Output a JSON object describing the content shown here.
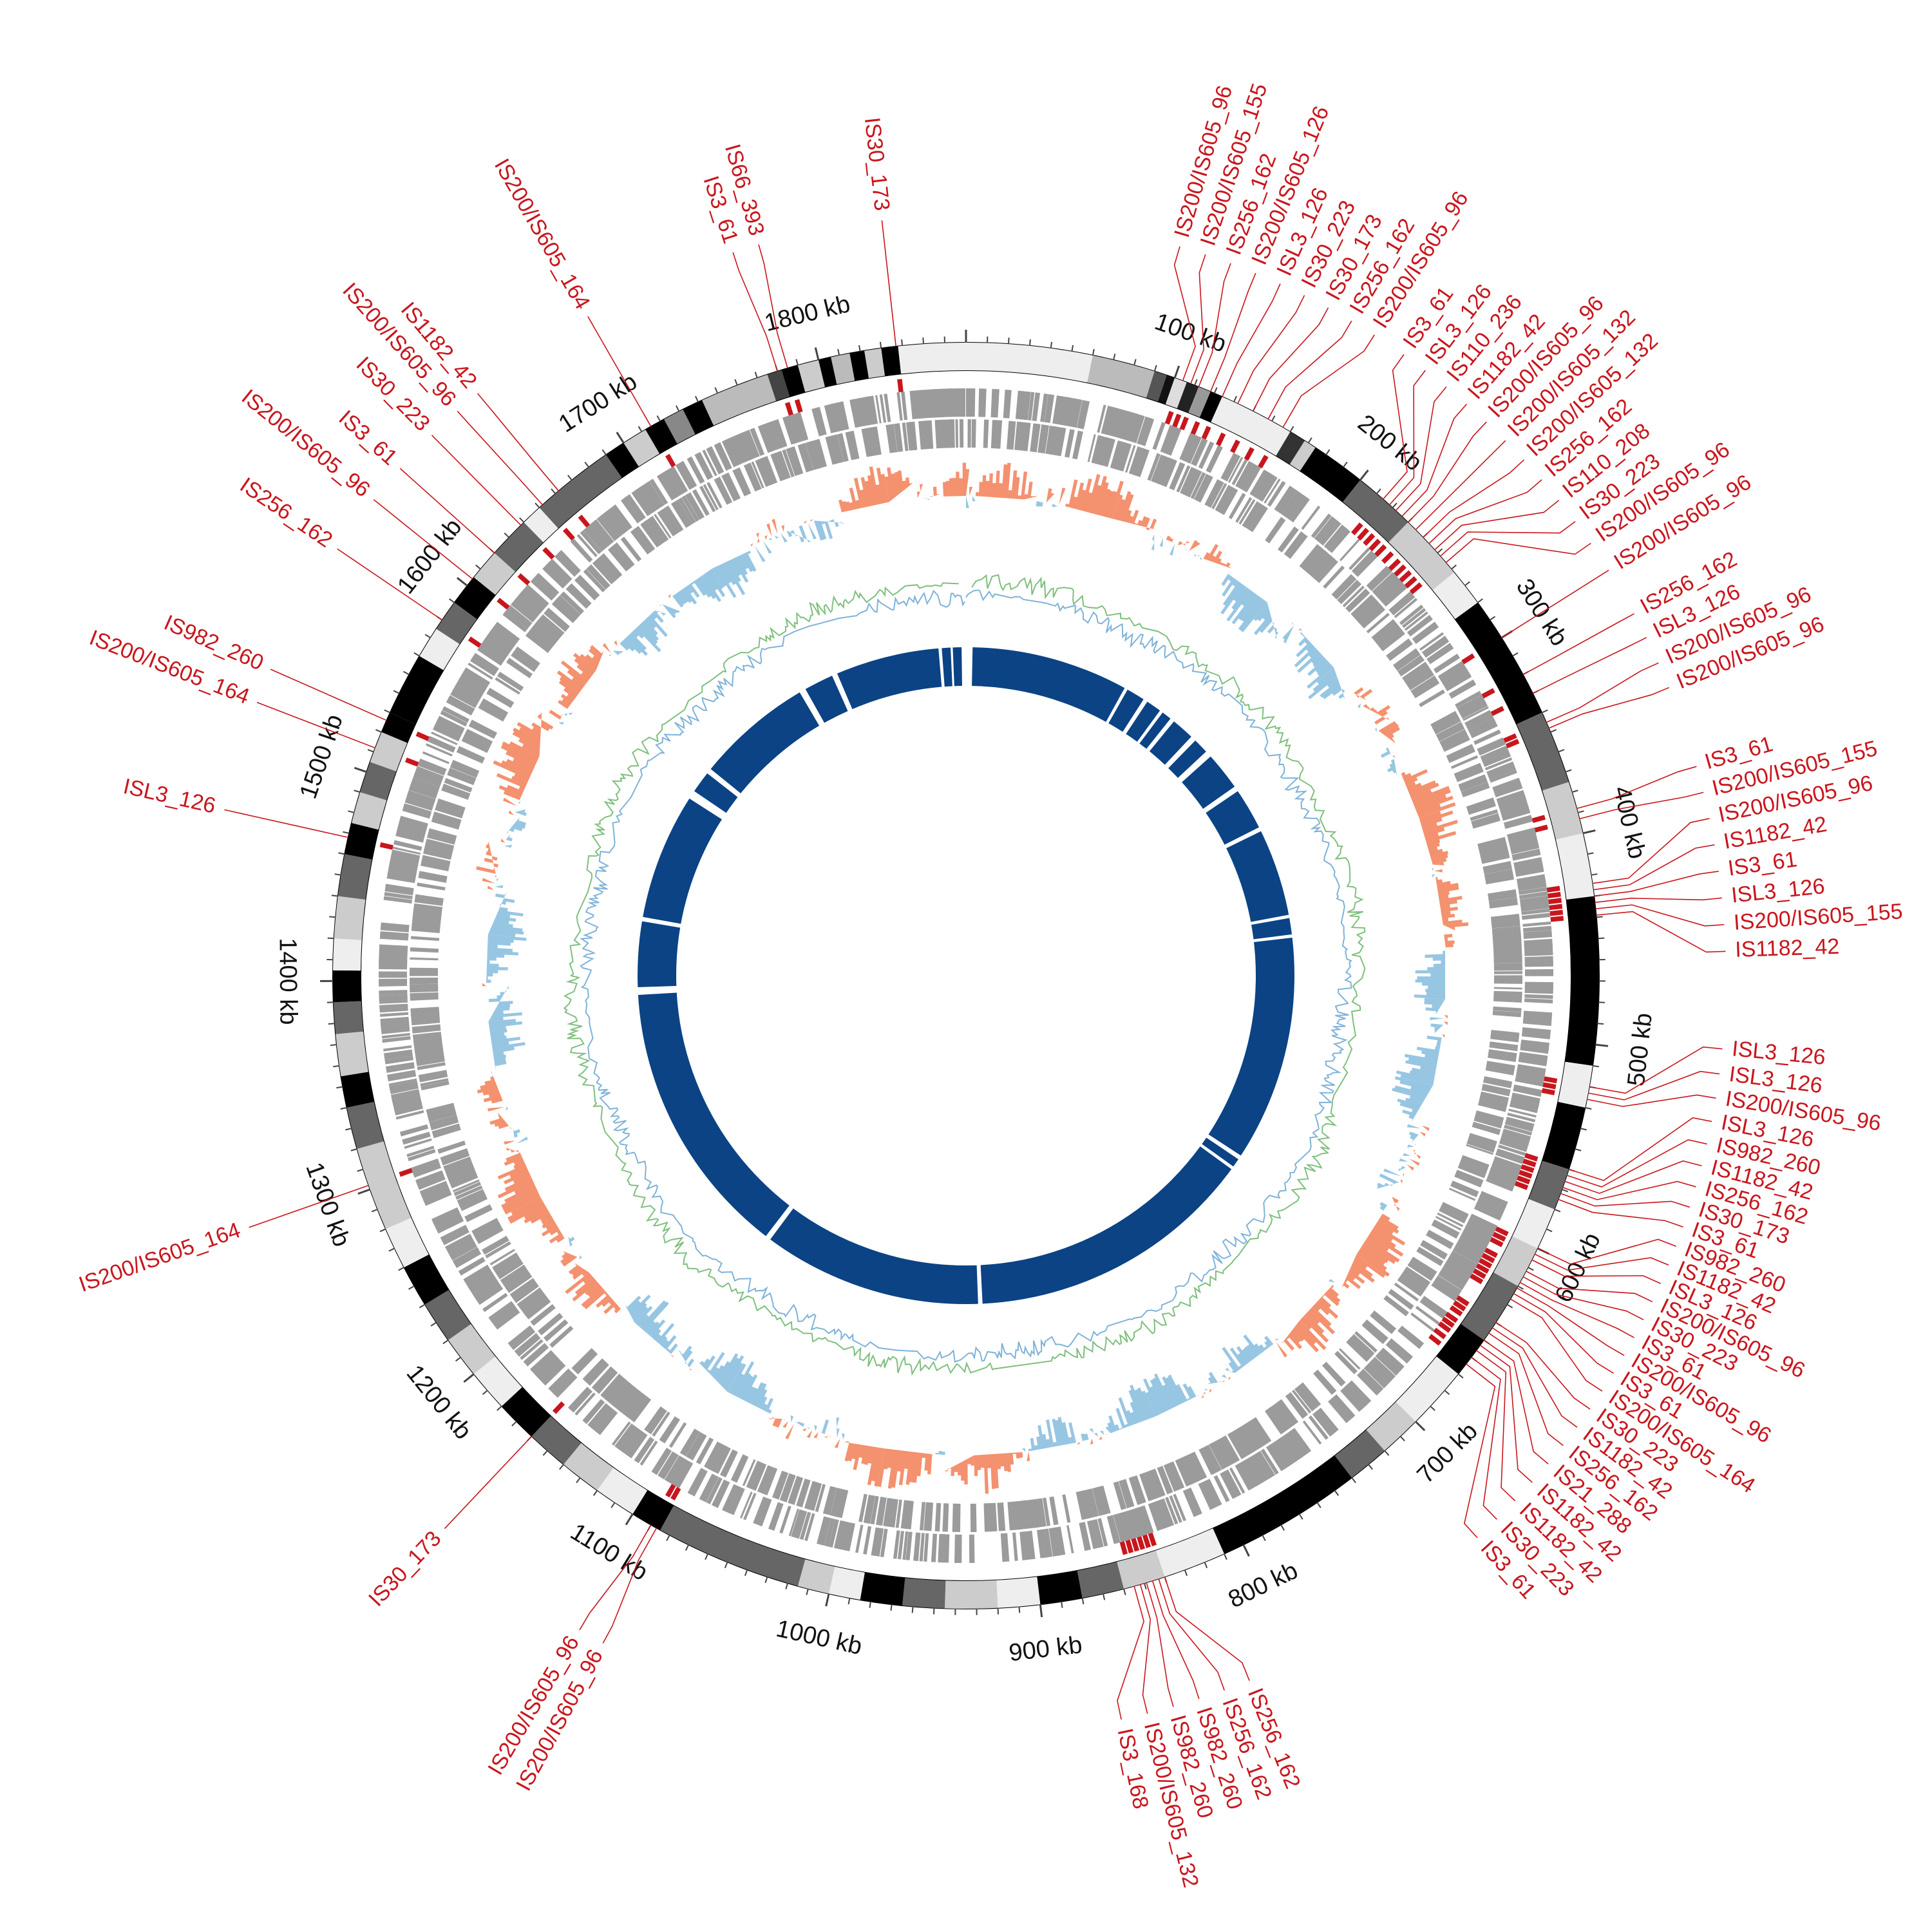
{
  "colors": {
    "label": "#c8161d",
    "scale_text": "#111111",
    "feature_gray": "#9b9b9b",
    "gc_skew_pos": "#f4916f",
    "gc_skew_neg": "#97c6e3",
    "gc_content_green": "#7fbf7f",
    "gc_content_blue": "#7fb2d8",
    "blast_blue": "#0b4385",
    "tick": "#444444"
  },
  "genome": {
    "length_kb": 1870,
    "scale_labels": [
      "100 kb",
      "200 kb",
      "300 kb",
      "400 kb",
      "500 kb",
      "600 kb",
      "700 kb",
      "800 kb",
      "900 kb",
      "1000 kb",
      "1100 kb",
      "1200 kb",
      "1300 kb",
      "1400 kb",
      "1500 kb",
      "1600 kb",
      "1700 kb",
      "1800 kb"
    ]
  },
  "ideogram_blocks": [
    {
      "start": 0,
      "end": 60,
      "shade": "#eeeeee"
    },
    {
      "start": 60,
      "end": 90,
      "shade": "#bbbbbb"
    },
    {
      "start": 90,
      "end": 96,
      "shade": "#555555"
    },
    {
      "start": 96,
      "end": 100,
      "shade": "#111111"
    },
    {
      "start": 100,
      "end": 106,
      "shade": "#dddddd"
    },
    {
      "start": 106,
      "end": 112,
      "shade": "#222222"
    },
    {
      "start": 112,
      "end": 118,
      "shade": "#999999"
    },
    {
      "start": 118,
      "end": 124,
      "shade": "#000000"
    },
    {
      "start": 124,
      "end": 160,
      "shade": "#eeeeee"
    },
    {
      "start": 160,
      "end": 168,
      "shade": "#333333"
    },
    {
      "start": 168,
      "end": 174,
      "shade": "#cccccc"
    },
    {
      "start": 174,
      "end": 200,
      "shade": "#000000"
    },
    {
      "start": 200,
      "end": 230,
      "shade": "#666666"
    },
    {
      "start": 230,
      "end": 262,
      "shade": "#cccccc"
    },
    {
      "start": 262,
      "end": 280,
      "shade": "#eeeeee"
    },
    {
      "start": 280,
      "end": 340,
      "shade": "#000000"
    },
    {
      "start": 340,
      "end": 375,
      "shade": "#666666"
    },
    {
      "start": 375,
      "end": 400,
      "shade": "#cccccc"
    },
    {
      "start": 400,
      "end": 430,
      "shade": "#eeeeee"
    },
    {
      "start": 430,
      "end": 510,
      "shade": "#000000"
    },
    {
      "start": 510,
      "end": 530,
      "shade": "#eeeeee"
    },
    {
      "start": 530,
      "end": 560,
      "shade": "#000000"
    },
    {
      "start": 560,
      "end": 580,
      "shade": "#666666"
    },
    {
      "start": 580,
      "end": 600,
      "shade": "#eeeeee"
    },
    {
      "start": 600,
      "end": 620,
      "shade": "#cccccc"
    },
    {
      "start": 620,
      "end": 650,
      "shade": "#666666"
    },
    {
      "start": 650,
      "end": 670,
      "shade": "#000000"
    },
    {
      "start": 670,
      "end": 700,
      "shade": "#eeeeee"
    },
    {
      "start": 700,
      "end": 720,
      "shade": "#cccccc"
    },
    {
      "start": 720,
      "end": 740,
      "shade": "#666666"
    },
    {
      "start": 740,
      "end": 810,
      "shade": "#000000"
    },
    {
      "start": 810,
      "end": 840,
      "shade": "#eeeeee"
    },
    {
      "start": 840,
      "end": 860,
      "shade": "#cccccc"
    },
    {
      "start": 860,
      "end": 880,
      "shade": "#666666"
    },
    {
      "start": 880,
      "end": 900,
      "shade": "#000000"
    },
    {
      "start": 900,
      "end": 920,
      "shade": "#eeeeee"
    },
    {
      "start": 920,
      "end": 945,
      "shade": "#cccccc"
    },
    {
      "start": 945,
      "end": 965,
      "shade": "#666666"
    },
    {
      "start": 965,
      "end": 985,
      "shade": "#000000"
    },
    {
      "start": 985,
      "end": 1000,
      "shade": "#eeeeee"
    },
    {
      "start": 1000,
      "end": 1015,
      "shade": "#cccccc"
    },
    {
      "start": 1015,
      "end": 1085,
      "shade": "#666666"
    },
    {
      "start": 1085,
      "end": 1100,
      "shade": "#000000"
    },
    {
      "start": 1100,
      "end": 1120,
      "shade": "#eeeeee"
    },
    {
      "start": 1120,
      "end": 1140,
      "shade": "#cccccc"
    },
    {
      "start": 1140,
      "end": 1160,
      "shade": "#666666"
    },
    {
      "start": 1160,
      "end": 1180,
      "shade": "#000000"
    },
    {
      "start": 1180,
      "end": 1200,
      "shade": "#eeeeee"
    },
    {
      "start": 1200,
      "end": 1220,
      "shade": "#cccccc"
    },
    {
      "start": 1220,
      "end": 1240,
      "shade": "#666666"
    },
    {
      "start": 1240,
      "end": 1260,
      "shade": "#000000"
    },
    {
      "start": 1260,
      "end": 1280,
      "shade": "#eeeeee"
    },
    {
      "start": 1280,
      "end": 1320,
      "shade": "#cccccc"
    },
    {
      "start": 1320,
      "end": 1340,
      "shade": "#666666"
    },
    {
      "start": 1340,
      "end": 1355,
      "shade": "#000000"
    },
    {
      "start": 1355,
      "end": 1375,
      "shade": "#cccccc"
    },
    {
      "start": 1375,
      "end": 1390,
      "shade": "#666666"
    },
    {
      "start": 1390,
      "end": 1405,
      "shade": "#000000"
    },
    {
      "start": 1405,
      "end": 1420,
      "shade": "#eeeeee"
    },
    {
      "start": 1420,
      "end": 1440,
      "shade": "#cccccc"
    },
    {
      "start": 1440,
      "end": 1460,
      "shade": "#666666"
    },
    {
      "start": 1460,
      "end": 1475,
      "shade": "#000000"
    },
    {
      "start": 1475,
      "end": 1490,
      "shade": "#cccccc"
    },
    {
      "start": 1490,
      "end": 1505,
      "shade": "#666666"
    },
    {
      "start": 1505,
      "end": 1520,
      "shade": "#cccccc"
    },
    {
      "start": 1520,
      "end": 1530,
      "shade": "#000000"
    },
    {
      "start": 1530,
      "end": 1560,
      "shade": "#000000"
    },
    {
      "start": 1560,
      "end": 1575,
      "shade": "#eeeeee"
    },
    {
      "start": 1575,
      "end": 1590,
      "shade": "#666666"
    },
    {
      "start": 1590,
      "end": 1605,
      "shade": "#000000"
    },
    {
      "start": 1605,
      "end": 1620,
      "shade": "#cccccc"
    },
    {
      "start": 1620,
      "end": 1640,
      "shade": "#666666"
    },
    {
      "start": 1640,
      "end": 1650,
      "shade": "#eeeeee"
    },
    {
      "start": 1650,
      "end": 1690,
      "shade": "#666666"
    },
    {
      "start": 1690,
      "end": 1700,
      "shade": "#000000"
    },
    {
      "start": 1700,
      "end": 1712,
      "shade": "#cccccc"
    },
    {
      "start": 1712,
      "end": 1722,
      "shade": "#000000"
    },
    {
      "start": 1722,
      "end": 1732,
      "shade": "#888888"
    },
    {
      "start": 1732,
      "end": 1742,
      "shade": "#000000"
    },
    {
      "start": 1742,
      "end": 1775,
      "shade": "#bbbbbb"
    },
    {
      "start": 1775,
      "end": 1782,
      "shade": "#444444"
    },
    {
      "start": 1782,
      "end": 1790,
      "shade": "#000000"
    },
    {
      "start": 1790,
      "end": 1800,
      "shade": "#cccccc"
    },
    {
      "start": 1800,
      "end": 1806,
      "shade": "#000000"
    },
    {
      "start": 1806,
      "end": 1815,
      "shade": "#bbbbbb"
    },
    {
      "start": 1815,
      "end": 1822,
      "shade": "#000000"
    },
    {
      "start": 1822,
      "end": 1830,
      "shade": "#cccccc"
    },
    {
      "start": 1830,
      "end": 1838,
      "shade": "#000000"
    },
    {
      "start": 1838,
      "end": 1870,
      "shade": "#eeeeee"
    }
  ],
  "is_elements": [
    {
      "label": "IS30_173",
      "pos": 1837
    },
    {
      "label": "IS200/IS605_96",
      "pos": 104
    },
    {
      "label": "IS200/IS605_155",
      "pos": 108
    },
    {
      "label": "IS256_162",
      "pos": 112
    },
    {
      "label": "IS200/IS605_126",
      "pos": 118
    },
    {
      "label": "ISL3_126",
      "pos": 124
    },
    {
      "label": "IS30_223",
      "pos": 132
    },
    {
      "label": "IS30_173",
      "pos": 140
    },
    {
      "label": "IS256_162",
      "pos": 148
    },
    {
      "label": "IS200/IS605_96",
      "pos": 156
    },
    {
      "label": "IS3_61",
      "pos": 214
    },
    {
      "label": "ISL3_126",
      "pos": 218
    },
    {
      "label": "IS110_236",
      "pos": 222
    },
    {
      "label": "IS1182_42",
      "pos": 226
    },
    {
      "label": "IS200/IS605_96",
      "pos": 230
    },
    {
      "label": "IS200/IS605_132",
      "pos": 235
    },
    {
      "label": "IS200/IS605_132",
      "pos": 240
    },
    {
      "label": "IS256_162",
      "pos": 244
    },
    {
      "label": "IS110_208",
      "pos": 248
    },
    {
      "label": "IS30_223",
      "pos": 252
    },
    {
      "label": "IS200/IS605_96",
      "pos": 256
    },
    {
      "label": "IS200/IS605_96",
      "pos": 300
    },
    {
      "label": "IS256_162",
      "pos": 320
    },
    {
      "label": "ISL3_126",
      "pos": 330
    },
    {
      "label": "IS200/IS605_96",
      "pos": 345
    },
    {
      "label": "IS200/IS605_96",
      "pos": 348
    },
    {
      "label": "IS3_61",
      "pos": 388
    },
    {
      "label": "IS200/IS605_155",
      "pos": 393
    },
    {
      "label": "IS200/IS605_96",
      "pos": 424
    },
    {
      "label": "IS1182_42",
      "pos": 427
    },
    {
      "label": "IS3_61",
      "pos": 430
    },
    {
      "label": "ISL3_126",
      "pos": 433
    },
    {
      "label": "IS200/IS605_155",
      "pos": 436
    },
    {
      "label": "IS1182_42",
      "pos": 439
    },
    {
      "label": "ISL3_126",
      "pos": 520
    },
    {
      "label": "ISL3_126",
      "pos": 523
    },
    {
      "label": "IS200/IS605_96",
      "pos": 526
    },
    {
      "label": "ISL3_126",
      "pos": 560
    },
    {
      "label": "IS982_260",
      "pos": 563
    },
    {
      "label": "IS1182_42",
      "pos": 566
    },
    {
      "label": "IS256_162",
      "pos": 569
    },
    {
      "label": "IS30_173",
      "pos": 572
    },
    {
      "label": "IS3_61",
      "pos": 575
    },
    {
      "label": "IS982_260",
      "pos": 600
    },
    {
      "label": "IS1182_42",
      "pos": 603
    },
    {
      "label": "ISL3_126",
      "pos": 606
    },
    {
      "label": "IS200/IS605_96",
      "pos": 612
    },
    {
      "label": "IS30_223",
      "pos": 615
    },
    {
      "label": "IS3_61",
      "pos": 618
    },
    {
      "label": "IS200/IS605_96",
      "pos": 621
    },
    {
      "label": "IS3_61",
      "pos": 624
    },
    {
      "label": "IS200/IS605_164",
      "pos": 627
    },
    {
      "label": "IS30_223",
      "pos": 640
    },
    {
      "label": "IS1182_42",
      "pos": 643
    },
    {
      "label": "IS256_162",
      "pos": 646
    },
    {
      "label": "IS21_288",
      "pos": 650
    },
    {
      "label": "IS1182_42",
      "pos": 653
    },
    {
      "label": "IS1182_42",
      "pos": 656
    },
    {
      "label": "IS30_223",
      "pos": 660
    },
    {
      "label": "IS3_61",
      "pos": 664
    },
    {
      "label": "IS256_162",
      "pos": 840
    },
    {
      "label": "IS256_162",
      "pos": 843
    },
    {
      "label": "IS982_260",
      "pos": 846
    },
    {
      "label": "IS982_260",
      "pos": 849
    },
    {
      "label": "IS200/IS605_132",
      "pos": 852
    },
    {
      "label": "IS3_168",
      "pos": 855
    },
    {
      "label": "IS200/IS605_96",
      "pos": 1087
    },
    {
      "label": "IS200/IS605_96",
      "pos": 1090
    },
    {
      "label": "IS30_173",
      "pos": 1160
    },
    {
      "label": "IS200/IS605_164",
      "pos": 1302
    },
    {
      "label": "ISL3_126",
      "pos": 1468
    },
    {
      "label": "IS200/IS605_164",
      "pos": 1512
    },
    {
      "label": "IS982_260",
      "pos": 1526
    },
    {
      "label": "IS256_162",
      "pos": 1580
    },
    {
      "label": "IS200/IS605_96",
      "pos": 1604
    },
    {
      "label": "IS3_61",
      "pos": 1620
    },
    {
      "label": "IS30_223",
      "pos": 1638
    },
    {
      "label": "IS200/IS605_96",
      "pos": 1652
    },
    {
      "label": "IS1182_42",
      "pos": 1662
    },
    {
      "label": "IS200/IS605_164",
      "pos": 1715
    },
    {
      "label": "IS3_61",
      "pos": 1780
    },
    {
      "label": "IS66_393",
      "pos": 1785
    }
  ],
  "blast_gaps": [
    {
      "start": 1845,
      "end": 1848
    },
    {
      "start": 1856,
      "end": 1858
    },
    {
      "start": 1866,
      "end": 1870
    },
    {
      "start": 0,
      "end": 6
    },
    {
      "start": 150,
      "end": 153
    },
    {
      "start": 170,
      "end": 174
    },
    {
      "start": 188,
      "end": 191
    },
    {
      "start": 200,
      "end": 204
    },
    {
      "start": 225,
      "end": 230
    },
    {
      "start": 244,
      "end": 250
    },
    {
      "start": 285,
      "end": 290
    },
    {
      "start": 328,
      "end": 332
    },
    {
      "start": 412,
      "end": 415
    },
    {
      "start": 430,
      "end": 433
    },
    {
      "start": 640,
      "end": 644
    },
    {
      "start": 652,
      "end": 655
    },
    {
      "start": 920,
      "end": 924
    },
    {
      "start": 1125,
      "end": 1130
    },
    {
      "start": 1385,
      "end": 1392
    },
    {
      "start": 1452,
      "end": 1456
    },
    {
      "start": 1572,
      "end": 1580
    },
    {
      "start": 1600,
      "end": 1605
    },
    {
      "start": 1712,
      "end": 1718
    },
    {
      "start": 1745,
      "end": 1750
    }
  ]
}
